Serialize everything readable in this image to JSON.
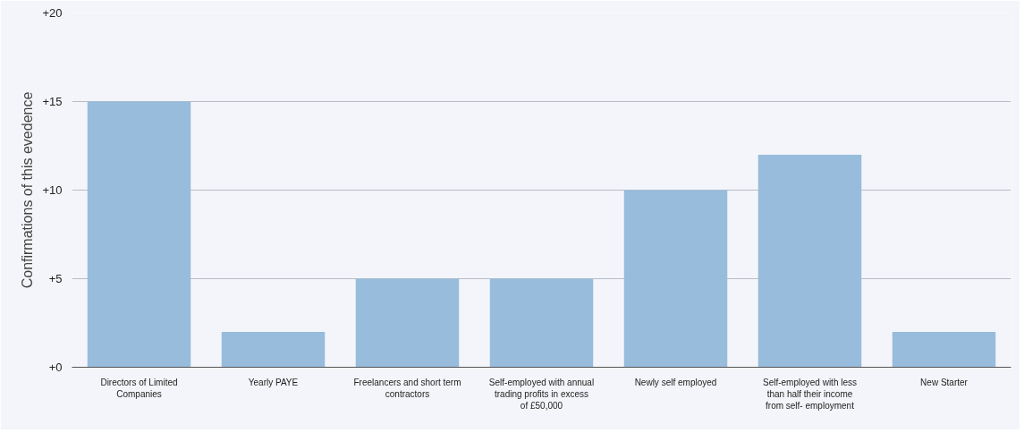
{
  "chart_data": {
    "type": "bar",
    "ylabel": "Confirmations of this evedence",
    "categories": [
      "Directors of Limited Companies",
      "Yearly PAYE",
      "Freelancers and short term contractors",
      "Self-employed with annual trading profits in excess of £50,000",
      "Newly self employed",
      "Self-employed with less than half their income from self- employment",
      "New Starter"
    ],
    "values": [
      15,
      2,
      5,
      5,
      10,
      12,
      2
    ],
    "color": "#97bcdc",
    "ylim": [
      0,
      20
    ],
    "yticks": [
      {
        "value": 0,
        "label": "+0"
      },
      {
        "value": 5,
        "label": "+5"
      },
      {
        "value": 10,
        "label": "+10"
      },
      {
        "value": 15,
        "label": "+15"
      },
      {
        "value": 20,
        "label": "+20"
      }
    ],
    "grid": "y"
  }
}
